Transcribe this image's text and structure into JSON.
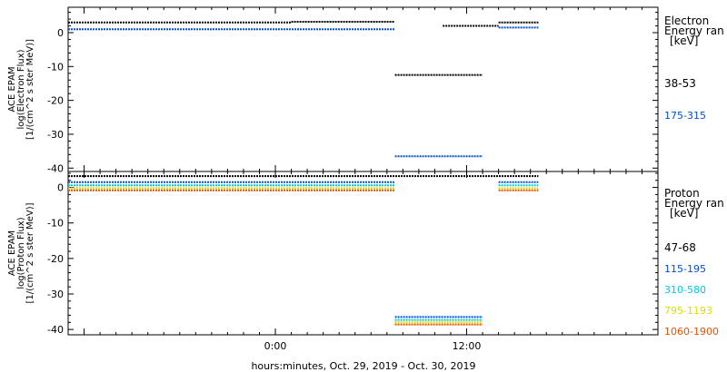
{
  "footer": {
    "xlabel": "hours:minutes, Oct. 29, 2019 - Oct. 30, 2019"
  },
  "chart_data": [
    {
      "type": "scatter",
      "panel": "electron",
      "ylabel": [
        "ACE EPAM",
        "log(Electron Flux)",
        "[1/(cm^2 s ster MeV)]"
      ],
      "legend_title": [
        "Electron",
        "Energy ran",
        "[keV]"
      ],
      "ylim": [
        -41,
        7.5
      ],
      "yticks": [
        0,
        -10,
        -20,
        -30,
        -40
      ],
      "xlim": [
        -13,
        24
      ],
      "xticks": [
        {
          "x": 0,
          "label": "0:00"
        },
        {
          "x": 12,
          "label": "12:00"
        }
      ],
      "series": [
        {
          "name": "38-53",
          "color": "#000000",
          "segments": [
            {
              "x0": -13.0,
              "x1": 1.0,
              "y": 3.0
            },
            {
              "x0": 1.0,
              "x1": 7.5,
              "y": 3.2
            },
            {
              "x0": 10.5,
              "x1": 14.0,
              "y": 2.0
            },
            {
              "x0": 7.5,
              "x1": 13.0,
              "y": -12.5
            },
            {
              "x0": 14.0,
              "x1": 16.5,
              "y": 3.0
            }
          ]
        },
        {
          "name": "175-315",
          "color": "#0050dc",
          "segments": [
            {
              "x0": -13.0,
              "x1": 7.5,
              "y": 1.0
            },
            {
              "x0": 7.5,
              "x1": 13.0,
              "y": -36.5
            },
            {
              "x0": 14.0,
              "x1": 16.5,
              "y": 1.5
            }
          ]
        }
      ]
    },
    {
      "type": "scatter",
      "panel": "proton",
      "ylabel": [
        "ACE EPAM",
        "log(Proton Flux)",
        "[1/(cm^2 s ster MeV)]"
      ],
      "legend_title": [
        "Proton",
        "Energy ran",
        "[keV]"
      ],
      "ylim": [
        -41.5,
        4.5
      ],
      "yticks": [
        0,
        -10,
        -20,
        -30,
        -40
      ],
      "xlim": [
        -13,
        24
      ],
      "xticks": [
        {
          "x": 0,
          "label": "0:00"
        },
        {
          "x": 12,
          "label": "12:00"
        }
      ],
      "series": [
        {
          "name": "47-68",
          "color": "#000000",
          "segments": [
            {
              "x0": -13.0,
              "x1": 16.5,
              "y": 3.2
            }
          ]
        },
        {
          "name": "115-195",
          "color": "#0050dc",
          "segments": [
            {
              "x0": -13.0,
              "x1": 7.5,
              "y": 1.5
            },
            {
              "x0": 7.5,
              "x1": 13.0,
              "y": -36.5
            },
            {
              "x0": 14.0,
              "x1": 16.5,
              "y": 1.5
            }
          ]
        },
        {
          "name": "310-580",
          "color": "#00c8e6",
          "segments": [
            {
              "x0": -13.0,
              "x1": 7.5,
              "y": 0.6
            },
            {
              "x0": 7.5,
              "x1": 13.0,
              "y": -37.3
            },
            {
              "x0": 14.0,
              "x1": 16.5,
              "y": 0.6
            }
          ]
        },
        {
          "name": "795-1193",
          "color": "#dcdc00",
          "segments": [
            {
              "x0": -13.0,
              "x1": 7.5,
              "y": -0.2
            },
            {
              "x0": 7.5,
              "x1": 13.0,
              "y": -38.0
            },
            {
              "x0": 14.0,
              "x1": 16.5,
              "y": -0.2
            }
          ]
        },
        {
          "name": "1060-1900",
          "color": "#e65000",
          "segments": [
            {
              "x0": -13.0,
              "x1": 7.5,
              "y": -0.8
            },
            {
              "x0": 7.5,
              "x1": 13.0,
              "y": -38.6
            },
            {
              "x0": 14.0,
              "x1": 16.5,
              "y": -0.8
            }
          ]
        }
      ]
    }
  ]
}
